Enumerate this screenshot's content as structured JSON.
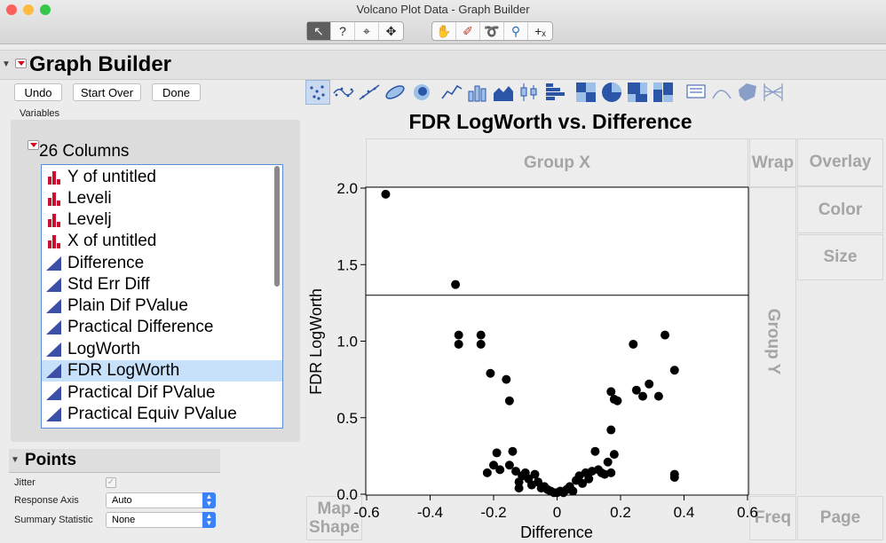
{
  "window": {
    "title": "Volcano Plot Data - Graph Builder",
    "tools": [
      "arrow-tool",
      "help-tool",
      "crosshair-tool",
      "move-tool",
      "hand-tool",
      "brush-tool",
      "lasso-tool",
      "zoom-tool",
      "selection-tool"
    ]
  },
  "header": {
    "title": "Graph Builder"
  },
  "actions": {
    "undo": "Undo",
    "start_over": "Start Over",
    "done": "Done"
  },
  "variables": {
    "label": "Variables",
    "columns_title": "26 Columns",
    "columns": [
      {
        "name": "Y of untitled",
        "type": "nominal"
      },
      {
        "name": "Leveli",
        "type": "nominal"
      },
      {
        "name": "Levelj",
        "type": "nominal"
      },
      {
        "name": "X of untitled",
        "type": "nominal"
      },
      {
        "name": "Difference",
        "type": "continuous"
      },
      {
        "name": "Std Err Diff",
        "type": "continuous"
      },
      {
        "name": "Plain Dif PValue",
        "type": "continuous"
      },
      {
        "name": "Practical Difference",
        "type": "continuous"
      },
      {
        "name": "LogWorth",
        "type": "continuous"
      },
      {
        "name": "FDR LogWorth",
        "type": "continuous",
        "selected": true
      },
      {
        "name": "Practical Dif PValue",
        "type": "continuous"
      },
      {
        "name": "Practical Equiv PValue",
        "type": "continuous"
      }
    ]
  },
  "points_panel": {
    "title": "Points",
    "jitter_label": "Jitter",
    "jitter_checked": true,
    "response_axis_label": "Response Axis",
    "response_axis_value": "Auto",
    "summary_stat_label": "Summary Statistic",
    "summary_stat_value": "None"
  },
  "zones": {
    "group_x": "Group X",
    "group_y": "Group Y",
    "wrap": "Wrap",
    "overlay": "Overlay",
    "color": "Color",
    "size": "Size",
    "freq": "Freq",
    "page": "Page",
    "map_shape_1": "Map",
    "map_shape_2": "Shape"
  },
  "chart_data": {
    "type": "scatter",
    "title": "FDR LogWorth vs. Difference",
    "xlabel": "Difference",
    "ylabel": "FDR LogWorth",
    "xlim": [
      -0.6,
      0.6
    ],
    "ylim": [
      0.0,
      2.0
    ],
    "xticks": [
      "-0.6",
      "-0.4",
      "-0.2",
      "0",
      "0.2",
      "0.4",
      "0.6"
    ],
    "yticks": [
      "0.0",
      "0.5",
      "1.0",
      "1.5",
      "2.0"
    ],
    "reference_line_y": 1.3,
    "marker_color": "#000000",
    "points": [
      [
        -0.54,
        1.96
      ],
      [
        -0.32,
        1.37
      ],
      [
        -0.31,
        1.04
      ],
      [
        -0.31,
        0.98
      ],
      [
        -0.24,
        1.04
      ],
      [
        -0.24,
        0.98
      ],
      [
        -0.21,
        0.79
      ],
      [
        -0.16,
        0.75
      ],
      [
        -0.15,
        0.61
      ],
      [
        -0.22,
        0.14
      ],
      [
        -0.2,
        0.19
      ],
      [
        -0.19,
        0.27
      ],
      [
        -0.18,
        0.16
      ],
      [
        -0.15,
        0.19
      ],
      [
        -0.14,
        0.28
      ],
      [
        -0.13,
        0.15
      ],
      [
        -0.12,
        0.08
      ],
      [
        -0.11,
        0.12
      ],
      [
        -0.1,
        0.14
      ],
      [
        -0.09,
        0.1
      ],
      [
        -0.08,
        0.06
      ],
      [
        -0.07,
        0.13
      ],
      [
        -0.06,
        0.08
      ],
      [
        -0.05,
        0.04
      ],
      [
        -0.04,
        0.05
      ],
      [
        -0.03,
        0.03
      ],
      [
        -0.02,
        0.02
      ],
      [
        -0.01,
        0.01
      ],
      [
        0.0,
        0.01
      ],
      [
        0.01,
        0.02
      ],
      [
        0.02,
        0.01
      ],
      [
        0.03,
        0.03
      ],
      [
        0.04,
        0.05
      ],
      [
        0.05,
        0.02
      ],
      [
        0.06,
        0.09
      ],
      [
        0.07,
        0.12
      ],
      [
        0.08,
        0.07
      ],
      [
        0.09,
        0.14
      ],
      [
        0.1,
        0.1
      ],
      [
        0.11,
        0.15
      ],
      [
        0.12,
        0.28
      ],
      [
        0.13,
        0.16
      ],
      [
        0.14,
        0.14
      ],
      [
        0.15,
        0.13
      ],
      [
        0.16,
        0.21
      ],
      [
        0.17,
        0.42
      ],
      [
        0.17,
        0.67
      ],
      [
        0.18,
        0.62
      ],
      [
        0.19,
        0.61
      ],
      [
        0.18,
        0.26
      ],
      [
        0.17,
        0.14
      ],
      [
        -0.12,
        0.04
      ],
      [
        0.24,
        0.98
      ],
      [
        0.25,
        0.68
      ],
      [
        0.27,
        0.64
      ],
      [
        0.29,
        0.72
      ],
      [
        0.32,
        0.64
      ],
      [
        0.34,
        1.04
      ],
      [
        0.37,
        0.81
      ],
      [
        0.37,
        0.13
      ],
      [
        0.37,
        0.11
      ]
    ]
  }
}
